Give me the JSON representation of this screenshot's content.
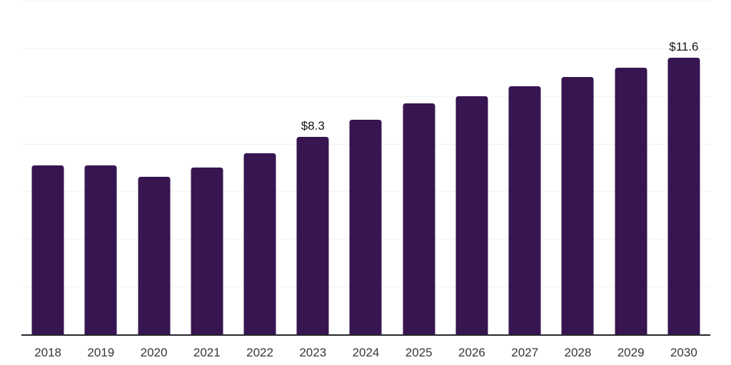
{
  "chart_data": {
    "type": "bar",
    "title": "",
    "xlabel": "",
    "ylabel": "",
    "categories": [
      "2018",
      "2019",
      "2020",
      "2021",
      "2022",
      "2023",
      "2024",
      "2025",
      "2026",
      "2027",
      "2028",
      "2029",
      "2030"
    ],
    "values": [
      7.1,
      7.1,
      6.6,
      7.0,
      7.6,
      8.3,
      9.0,
      9.7,
      10.0,
      10.4,
      10.8,
      11.2,
      11.6
    ],
    "data_labels": [
      "",
      "",
      "",
      "",
      "",
      "$8.3",
      "",
      "",
      "",
      "",
      "",
      "",
      "$11.6"
    ],
    "ylim": [
      0,
      14
    ],
    "gridline_step": 2,
    "grid": "horizontal-only",
    "legend_position": "none",
    "y_axis_tick_labels_visible": false,
    "colors": {
      "bar": "#371550",
      "gridline": "#f2f2f2",
      "axis_line": "#26262e",
      "tick_label": "#35353c",
      "data_label": "#15151a",
      "background": "#ffffff"
    }
  }
}
